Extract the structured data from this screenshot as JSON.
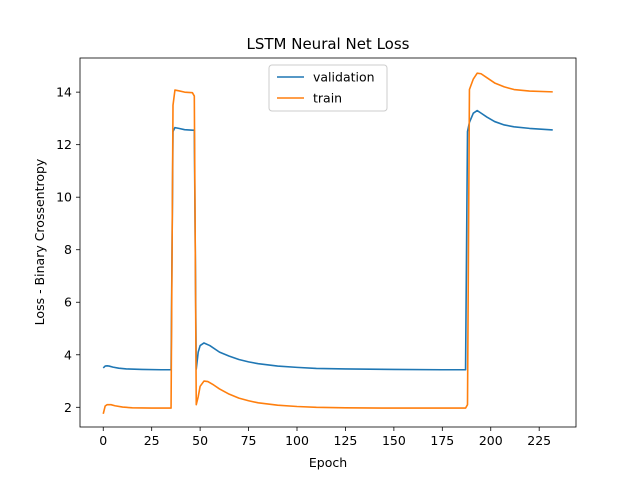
{
  "chart_data": {
    "type": "line",
    "title": "LSTM Neural Net Loss",
    "xlabel": "Epoch",
    "ylabel": "Loss - Binary Crossentropy",
    "xlim": [
      -12,
      244
    ],
    "ylim": [
      1.25,
      15.3
    ],
    "xticks": [
      0,
      25,
      50,
      75,
      100,
      125,
      150,
      175,
      200,
      225
    ],
    "yticks": [
      2,
      4,
      6,
      8,
      10,
      12,
      14
    ],
    "grid": false,
    "legend_position": "upper center",
    "series": [
      {
        "name": "validation",
        "color": "#1f77b4",
        "points": [
          [
            0,
            3.5
          ],
          [
            1,
            3.57
          ],
          [
            2,
            3.58
          ],
          [
            3,
            3.57
          ],
          [
            5,
            3.53
          ],
          [
            8,
            3.49
          ],
          [
            12,
            3.46
          ],
          [
            20,
            3.44
          ],
          [
            30,
            3.43
          ],
          [
            35,
            3.43
          ],
          [
            36,
            12.5
          ],
          [
            37,
            12.65
          ],
          [
            39,
            12.62
          ],
          [
            42,
            12.57
          ],
          [
            46,
            12.55
          ],
          [
            47,
            12.55
          ],
          [
            48,
            3.45
          ],
          [
            49,
            4.1
          ],
          [
            50,
            4.35
          ],
          [
            52,
            4.45
          ],
          [
            55,
            4.35
          ],
          [
            60,
            4.1
          ],
          [
            65,
            3.95
          ],
          [
            70,
            3.82
          ],
          [
            75,
            3.73
          ],
          [
            80,
            3.66
          ],
          [
            90,
            3.57
          ],
          [
            100,
            3.52
          ],
          [
            110,
            3.48
          ],
          [
            125,
            3.46
          ],
          [
            150,
            3.44
          ],
          [
            175,
            3.43
          ],
          [
            187,
            3.43
          ],
          [
            188,
            12.5
          ],
          [
            189,
            12.85
          ],
          [
            191,
            13.2
          ],
          [
            193,
            13.3
          ],
          [
            195,
            13.2
          ],
          [
            198,
            13.05
          ],
          [
            202,
            12.88
          ],
          [
            207,
            12.75
          ],
          [
            212,
            12.68
          ],
          [
            220,
            12.62
          ],
          [
            232,
            12.56
          ]
        ]
      },
      {
        "name": "train",
        "color": "#ff7f0e",
        "points": [
          [
            0,
            1.75
          ],
          [
            1,
            2.05
          ],
          [
            2,
            2.1
          ],
          [
            4,
            2.1
          ],
          [
            6,
            2.06
          ],
          [
            10,
            2.01
          ],
          [
            15,
            1.98
          ],
          [
            25,
            1.97
          ],
          [
            35,
            1.97
          ],
          [
            36,
            13.5
          ],
          [
            37,
            14.08
          ],
          [
            39,
            14.05
          ],
          [
            42,
            14.0
          ],
          [
            46,
            13.98
          ],
          [
            47,
            13.85
          ],
          [
            48,
            2.1
          ],
          [
            49,
            2.4
          ],
          [
            50,
            2.8
          ],
          [
            52,
            3.0
          ],
          [
            54,
            2.98
          ],
          [
            57,
            2.85
          ],
          [
            60,
            2.7
          ],
          [
            65,
            2.5
          ],
          [
            70,
            2.35
          ],
          [
            75,
            2.25
          ],
          [
            80,
            2.17
          ],
          [
            90,
            2.08
          ],
          [
            100,
            2.03
          ],
          [
            110,
            2.0
          ],
          [
            125,
            1.98
          ],
          [
            150,
            1.97
          ],
          [
            187,
            1.97
          ],
          [
            188,
            2.1
          ],
          [
            189,
            14.1
          ],
          [
            191,
            14.5
          ],
          [
            193,
            14.72
          ],
          [
            195,
            14.7
          ],
          [
            198,
            14.55
          ],
          [
            202,
            14.35
          ],
          [
            207,
            14.2
          ],
          [
            212,
            14.1
          ],
          [
            220,
            14.04
          ],
          [
            232,
            14.01
          ]
        ]
      }
    ]
  }
}
